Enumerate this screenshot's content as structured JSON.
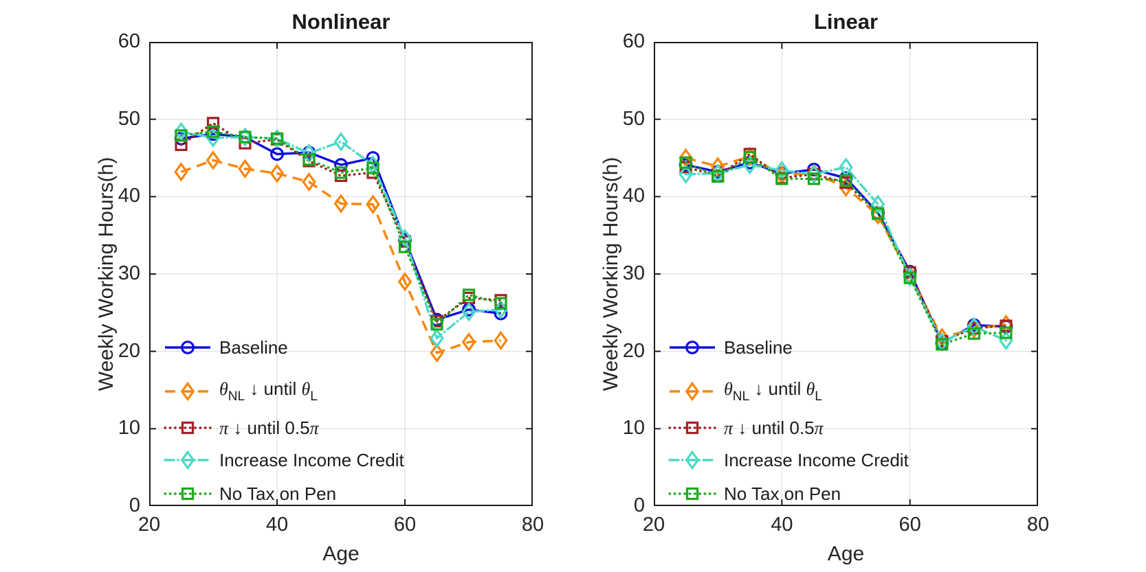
{
  "figure": {
    "background": "#ffffff"
  },
  "axes_style": {
    "frame_color": "#1c1c1c",
    "grid_color": "#e2e2e2",
    "text_color": "#252525",
    "grid": true,
    "tick_direction": "in"
  },
  "legend": {
    "location": "inside bottom-left, no box",
    "items": [
      {
        "series": 0,
        "parts": [
          {
            "t": "Baseline"
          }
        ]
      },
      {
        "series": 1,
        "parts": [
          {
            "t": "θ",
            "math": true
          },
          {
            "t": "NL",
            "sub": true
          },
          {
            "t": " ↓ until "
          },
          {
            "t": "θ",
            "math": true
          },
          {
            "t": "L",
            "sub": true
          }
        ]
      },
      {
        "series": 2,
        "parts": [
          {
            "t": "π",
            "math": true
          },
          {
            "t": " ↓ until 0.5"
          },
          {
            "t": "π",
            "math": true
          }
        ]
      },
      {
        "series": 3,
        "parts": [
          {
            "t": "Increase Income Credit"
          }
        ]
      },
      {
        "series": 4,
        "parts": [
          {
            "t": "No Tax on Pen"
          }
        ]
      }
    ]
  },
  "chart_data": [
    {
      "type": "line",
      "title": "Nonlinear",
      "xlabel": "Age",
      "ylabel": "Weekly Working Hours(h)",
      "xlim": [
        20,
        80
      ],
      "ylim": [
        0,
        60
      ],
      "xticks": [
        20,
        40,
        60,
        80
      ],
      "yticks": [
        0,
        10,
        20,
        30,
        40,
        50,
        60
      ],
      "x": [
        25,
        30,
        35,
        40,
        45,
        50,
        55,
        60,
        65,
        70,
        75
      ],
      "series": [
        {
          "name": "Baseline",
          "color": "#0d0de0",
          "line": "solid",
          "marker": "circle",
          "values": [
            47.5,
            48.1,
            47.7,
            45.5,
            45.7,
            44.1,
            45.0,
            34.4,
            24.1,
            25.4,
            24.9
          ]
        },
        {
          "name": "theta_NL down until theta_L",
          "color": "#f8860b",
          "line": "dashed",
          "marker": "diamond",
          "values": [
            43.2,
            44.7,
            43.6,
            43.0,
            41.9,
            39.1,
            39.0,
            29.0,
            19.8,
            21.2,
            21.4
          ]
        },
        {
          "name": "pi down until 0.5pi",
          "color": "#a32125",
          "line": "dotted",
          "marker": "square",
          "values": [
            46.7,
            49.5,
            46.9,
            47.4,
            44.6,
            42.7,
            43.1,
            34.2,
            23.9,
            26.9,
            26.6
          ]
        },
        {
          "name": "Increase Income Credit",
          "color": "#4cd9c6",
          "line": "dashdot",
          "marker": "diamond",
          "values": [
            48.4,
            47.6,
            47.7,
            47.5,
            45.6,
            47.1,
            44.1,
            34.6,
            21.7,
            25.1,
            25.4
          ]
        },
        {
          "name": "No Tax on Pen",
          "color": "#1ea91e",
          "line": "dotted",
          "marker": "square",
          "values": [
            47.9,
            48.4,
            47.7,
            47.5,
            44.8,
            43.1,
            43.7,
            33.5,
            23.5,
            27.3,
            26.2
          ]
        }
      ]
    },
    {
      "type": "line",
      "title": "Linear",
      "xlabel": "Age",
      "ylabel": "Weekly Working Hours(h)",
      "xlim": [
        20,
        80
      ],
      "ylim": [
        0,
        60
      ],
      "xticks": [
        20,
        40,
        60,
        80
      ],
      "yticks": [
        0,
        10,
        20,
        30,
        40,
        50,
        60
      ],
      "x": [
        25,
        30,
        35,
        40,
        45,
        50,
        55,
        60,
        65,
        70,
        75
      ],
      "series": [
        {
          "name": "Baseline",
          "color": "#0d0de0",
          "line": "solid",
          "marker": "circle",
          "values": [
            44.1,
            43.2,
            44.4,
            43.0,
            43.5,
            42.4,
            37.9,
            30.3,
            21.1,
            23.4,
            23.2
          ]
        },
        {
          "name": "theta_NL down until theta_L",
          "color": "#f8860b",
          "line": "dashed",
          "marker": "diamond",
          "values": [
            45.0,
            43.9,
            45.2,
            42.8,
            43.0,
            41.2,
            37.6,
            29.8,
            21.8,
            22.9,
            23.5
          ]
        },
        {
          "name": "pi down until 0.5pi",
          "color": "#a32125",
          "line": "dotted",
          "marker": "square",
          "values": [
            43.8,
            42.7,
            45.5,
            42.4,
            42.9,
            41.8,
            37.8,
            30.2,
            21.3,
            23.0,
            23.3
          ]
        },
        {
          "name": "Increase Income Credit",
          "color": "#4cd9c6",
          "line": "dashdot",
          "marker": "diamond",
          "values": [
            42.9,
            43.0,
            44.1,
            43.4,
            42.9,
            43.8,
            39.0,
            29.6,
            21.2,
            23.2,
            21.4
          ]
        },
        {
          "name": "No Tax on Pen",
          "color": "#1ea91e",
          "line": "dotted",
          "marker": "square",
          "values": [
            44.4,
            42.6,
            45.1,
            42.3,
            42.3,
            42.1,
            37.8,
            29.5,
            20.9,
            22.3,
            22.4
          ]
        }
      ]
    }
  ]
}
